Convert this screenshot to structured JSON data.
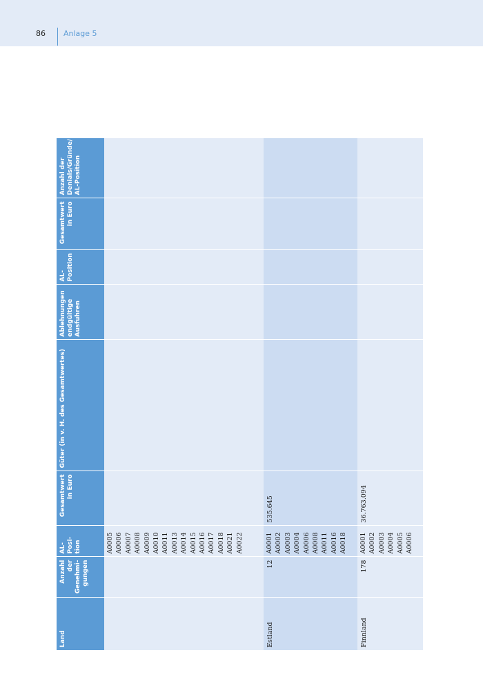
{
  "header": {
    "page_number": "86",
    "section": "Anlage 5"
  },
  "table": {
    "columns": [
      "Land",
      "Anzahl der Genehmi-gungen",
      "AL-Posi-tion",
      "Gesamtwert in Euro",
      "Güter (in v. H. des Gesamtwertes)",
      "Ablehnungen endgültige Ausfuhren",
      "AL-Position",
      "Gesamtwert in Euro",
      "Anzahl der Denials/Gründe/ AL-Position"
    ],
    "rows": [
      {
        "land": "",
        "anzahl": "",
        "positions": [
          "A0005",
          "A0006",
          "A0007",
          "A0008",
          "A0009",
          "A0010",
          "A0011",
          "A0013",
          "A0014",
          "A0015",
          "A0016",
          "A0017",
          "A0018",
          "A0021",
          "A0022"
        ],
        "gesamtwert": "",
        "gueter": "",
        "ablehnungen": "",
        "al_position": "",
        "gesamtwert2": "",
        "denials": ""
      },
      {
        "land": "Estland",
        "anzahl": "12",
        "positions": [
          "A0001",
          "A0002",
          "A0003",
          "A0004",
          "A0006",
          "A0008",
          "A0011",
          "A0016",
          "A0018"
        ],
        "gesamtwert": "535.645",
        "gueter": "",
        "ablehnungen": "",
        "al_position": "",
        "gesamtwert2": "",
        "denials": ""
      },
      {
        "land": "Finnland",
        "anzahl": "178",
        "positions": [
          "A0001",
          "A0002",
          "A0003",
          "A0004",
          "A0005",
          "A0006"
        ],
        "gesamtwert": "36.763.094",
        "gueter": "",
        "ablehnungen": "",
        "al_position": "",
        "gesamtwert2": "",
        "denials": ""
      }
    ]
  }
}
